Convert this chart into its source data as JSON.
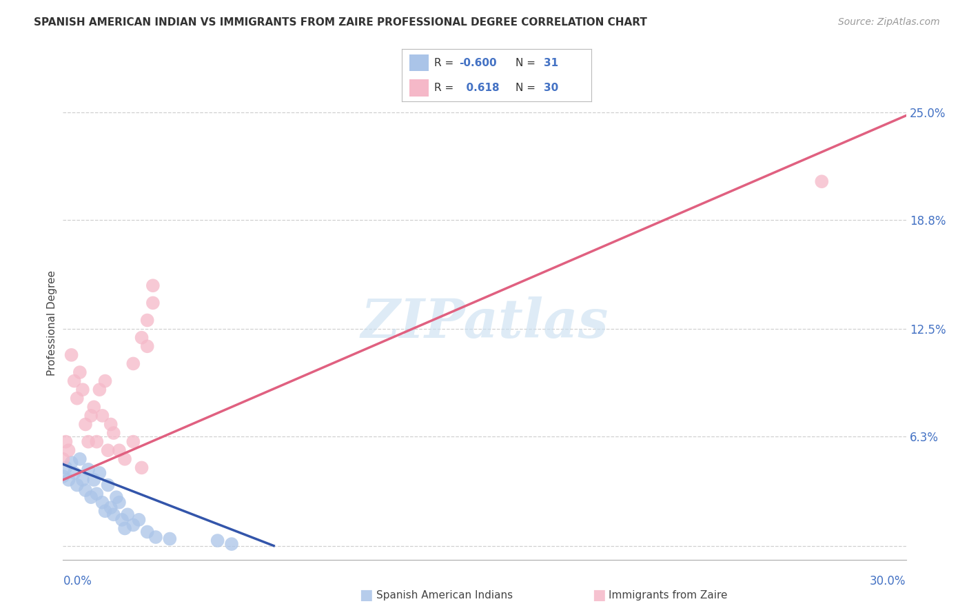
{
  "title": "SPANISH AMERICAN INDIAN VS IMMIGRANTS FROM ZAIRE PROFESSIONAL DEGREE CORRELATION CHART",
  "source": "Source: ZipAtlas.com",
  "ylabel": "Professional Degree",
  "legend_blue_r": "-0.600",
  "legend_blue_n": "31",
  "legend_pink_r": "0.618",
  "legend_pink_n": "30",
  "background_color": "#ffffff",
  "grid_color": "#d0d0d0",
  "blue_scatter_color": "#aac4e8",
  "pink_scatter_color": "#f5b8c8",
  "blue_line_color": "#3355aa",
  "pink_line_color": "#e06080",
  "watermark_color": "#c8dff0",
  "ytick_color": "#4472c4",
  "xtick_color": "#4472c4",
  "blue_points_x": [
    0.0,
    0.001,
    0.002,
    0.003,
    0.004,
    0.005,
    0.006,
    0.007,
    0.008,
    0.009,
    0.01,
    0.011,
    0.012,
    0.013,
    0.014,
    0.015,
    0.016,
    0.017,
    0.018,
    0.019,
    0.02,
    0.021,
    0.022,
    0.023,
    0.025,
    0.027,
    0.03,
    0.033,
    0.038,
    0.055,
    0.06
  ],
  "blue_points_y": [
    0.04,
    0.045,
    0.038,
    0.048,
    0.042,
    0.035,
    0.05,
    0.038,
    0.032,
    0.044,
    0.028,
    0.038,
    0.03,
    0.042,
    0.025,
    0.02,
    0.035,
    0.022,
    0.018,
    0.028,
    0.025,
    0.015,
    0.01,
    0.018,
    0.012,
    0.015,
    0.008,
    0.005,
    0.004,
    0.003,
    0.001
  ],
  "pink_points_x": [
    0.0,
    0.001,
    0.002,
    0.003,
    0.004,
    0.005,
    0.006,
    0.007,
    0.008,
    0.009,
    0.01,
    0.011,
    0.012,
    0.013,
    0.014,
    0.015,
    0.016,
    0.017,
    0.018,
    0.02,
    0.022,
    0.025,
    0.028,
    0.03,
    0.032,
    0.03,
    0.028,
    0.025,
    0.032,
    0.27
  ],
  "pink_points_y": [
    0.05,
    0.06,
    0.055,
    0.11,
    0.095,
    0.085,
    0.1,
    0.09,
    0.07,
    0.06,
    0.075,
    0.08,
    0.06,
    0.09,
    0.075,
    0.095,
    0.055,
    0.07,
    0.065,
    0.055,
    0.05,
    0.06,
    0.045,
    0.115,
    0.14,
    0.13,
    0.12,
    0.105,
    0.15,
    0.21
  ],
  "xmin": 0.0,
  "xmax": 0.3,
  "ymin": -0.008,
  "ymax": 0.265,
  "yticks": [
    0.0,
    0.063,
    0.125,
    0.188,
    0.25
  ],
  "ytick_labels": [
    "",
    "6.3%",
    "12.5%",
    "18.8%",
    "25.0%"
  ]
}
